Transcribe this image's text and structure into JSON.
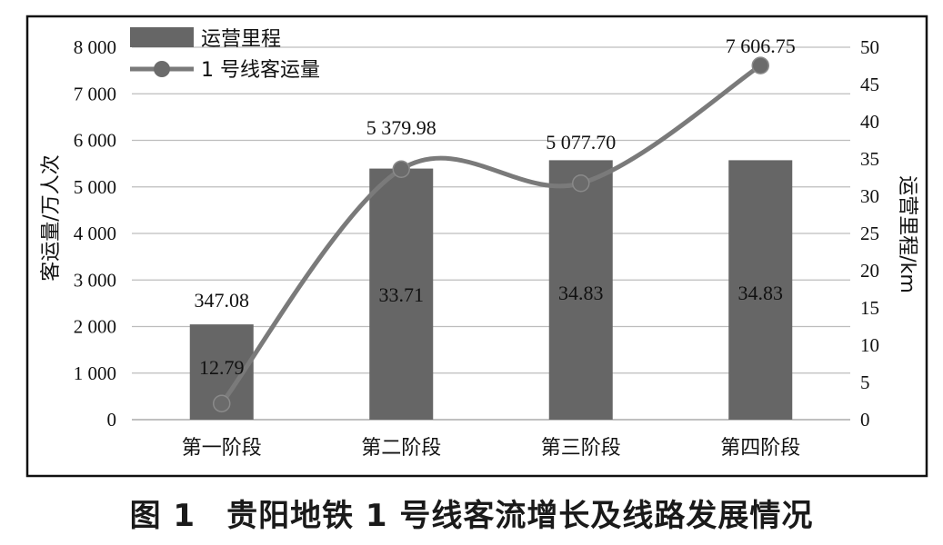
{
  "caption": {
    "figure_no": "图 1",
    "text": "贵阳地铁 1 号线客流增长及线路发展情况"
  },
  "colors": {
    "bar": "#666666",
    "line": "#7a7a7a",
    "marker": "#6b6b6b",
    "grid": "#bdbdbd",
    "frame": "#111111"
  },
  "chart_data": {
    "type": "bar",
    "categories": [
      "第一阶段",
      "第二阶段",
      "第三阶段",
      "第四阶段"
    ],
    "title": "",
    "ylabel_left": "客运量/万人次",
    "ylabel_right": "运营里程/km",
    "ylim_left": [
      0,
      8000
    ],
    "ylim_right": [
      0,
      50
    ],
    "left_ticks": [
      0,
      1000,
      2000,
      3000,
      4000,
      5000,
      6000,
      7000,
      8000
    ],
    "left_tick_labels": [
      "0",
      "1 000",
      "2 000",
      "3 000",
      "4 000",
      "5 000",
      "6 000",
      "7 000",
      "8 000"
    ],
    "right_ticks": [
      0,
      5,
      10,
      15,
      20,
      25,
      30,
      35,
      40,
      45,
      50
    ],
    "right_tick_labels": [
      "0",
      "5",
      "10",
      "15",
      "20",
      "25",
      "30",
      "35",
      "40",
      "45",
      "50"
    ],
    "grid": true,
    "legend": {
      "placement": "top-left",
      "entries": [
        "运营里程",
        "1 号线客运量"
      ]
    },
    "series": [
      {
        "name": "运营里程",
        "type": "bar",
        "axis": "right",
        "values": [
          12.79,
          33.71,
          34.83,
          34.83
        ],
        "labels": [
          "12.79",
          "33.71",
          "34.83",
          "34.83"
        ]
      },
      {
        "name": "1 号线客运量",
        "type": "line",
        "axis": "left",
        "smooth": true,
        "values": [
          347.08,
          5379.98,
          5077.7,
          7606.75
        ],
        "labels": [
          "347.08",
          "5 379.98",
          "5 077.70",
          "7 606.75"
        ]
      }
    ]
  }
}
